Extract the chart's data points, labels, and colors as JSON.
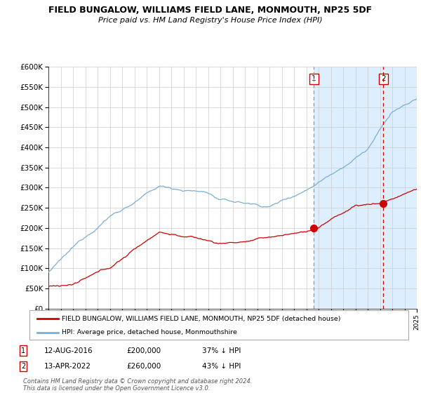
{
  "title": "FIELD BUNGALOW, WILLIAMS FIELD LANE, MONMOUTH, NP25 5DF",
  "subtitle": "Price paid vs. HM Land Registry's House Price Index (HPI)",
  "x_start_year": 1995,
  "x_end_year": 2025,
  "ylim": [
    0,
    600000
  ],
  "yticks": [
    0,
    50000,
    100000,
    150000,
    200000,
    250000,
    300000,
    350000,
    400000,
    450000,
    500000,
    550000,
    600000
  ],
  "ytick_labels": [
    "£0",
    "£50K",
    "£100K",
    "£150K",
    "£200K",
    "£250K",
    "£300K",
    "£350K",
    "£400K",
    "£450K",
    "£500K",
    "£550K",
    "£600K"
  ],
  "sale1_date": 2016.617,
  "sale1_price": 200000,
  "sale2_date": 2022.283,
  "sale2_price": 260000,
  "hpi_color": "#7bafd4",
  "price_color": "#cc0000",
  "vline1_color": "#999999",
  "vline2_color": "#cc0000",
  "shade_color": "#ddeeff",
  "legend1_text": "FIELD BUNGALOW, WILLIAMS FIELD LANE, MONMOUTH, NP25 5DF (detached house)",
  "legend2_text": "HPI: Average price, detached house, Monmouthshire",
  "table_row1": [
    "1",
    "12-AUG-2016",
    "£200,000",
    "37% ↓ HPI"
  ],
  "table_row2": [
    "2",
    "13-APR-2022",
    "£260,000",
    "43% ↓ HPI"
  ],
  "footnote": "Contains HM Land Registry data © Crown copyright and database right 2024.\nThis data is licensed under the Open Government Licence v3.0.",
  "background_color": "#ffffff"
}
